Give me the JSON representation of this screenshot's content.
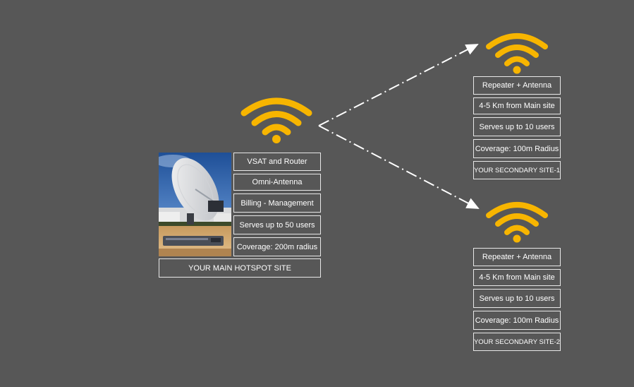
{
  "main_site": {
    "features": [
      "VSAT and Router",
      "Omni-Antenna",
      "Billing - Management",
      "Serves up to 50 users",
      "Coverage: 200m radius"
    ],
    "title": "YOUR MAIN HOTSPOT SITE"
  },
  "secondary_sites": [
    {
      "features": [
        "Repeater + Antenna",
        "4-5 Km from Main site",
        "Serves up to 10 users",
        "Coverage: 100m Radius"
      ],
      "title": "YOUR SECONDARY SITE-1"
    },
    {
      "features": [
        "Repeater + Antenna",
        "4-5 Km from Main site",
        "Serves up to 10 users",
        "Coverage: 100m Radius"
      ],
      "title": "YOUR SECONDARY SITE-2"
    }
  ],
  "colors": {
    "background": "#575757",
    "wifi": "#f7b500",
    "box_border": "#e8e8e8",
    "text": "#ffffff",
    "arrow": "#ffffff"
  },
  "icons": [
    "wifi-icon",
    "satellite-dish-photo",
    "router-photo"
  ]
}
